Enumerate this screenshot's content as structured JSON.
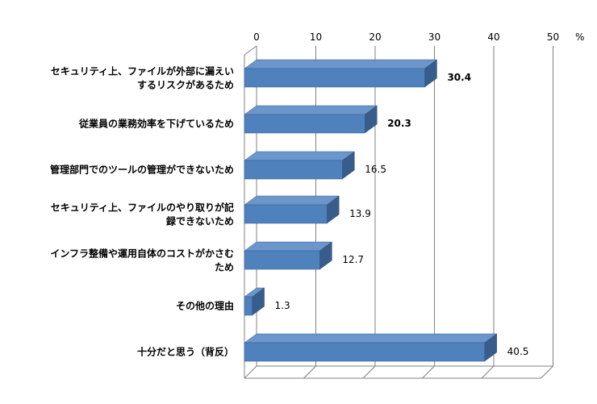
{
  "chart_data": {
    "type": "bar",
    "orientation": "horizontal",
    "unit": "%",
    "x_ticks": [
      "0",
      "10",
      "20",
      "30",
      "40",
      "50"
    ],
    "xlim": [
      0,
      50
    ],
    "grid": true,
    "categories": [
      [
        "セキュリティ上、ファイルが外部に漏えい",
        "するリスクがあるため"
      ],
      [
        "従業員の業務効率を下げているため"
      ],
      [
        "管理部門でのツールの管理ができないため"
      ],
      [
        "セキュリティ上、ファイルのやり取りが記",
        "録できないため"
      ],
      [
        "インフラ整備や運用自体のコストがかさむ",
        "ため"
      ],
      [
        "その他の理由"
      ],
      [
        "十分だと思う（背反）"
      ]
    ],
    "values": [
      30.4,
      20.3,
      16.5,
      13.9,
      12.7,
      1.3,
      40.5
    ],
    "value_labels": [
      "30.4",
      "20.3",
      "16.5",
      "13.9",
      "12.7",
      "1.3",
      "40.5"
    ],
    "bold_labels": [
      true,
      true,
      false,
      false,
      false,
      false,
      false
    ],
    "colors": {
      "bar_front": "#4F81BD",
      "bar_top": "#6B96CC",
      "bar_side": "#385D8A",
      "grid": "#808080",
      "floor": "#BFBFBF"
    }
  }
}
